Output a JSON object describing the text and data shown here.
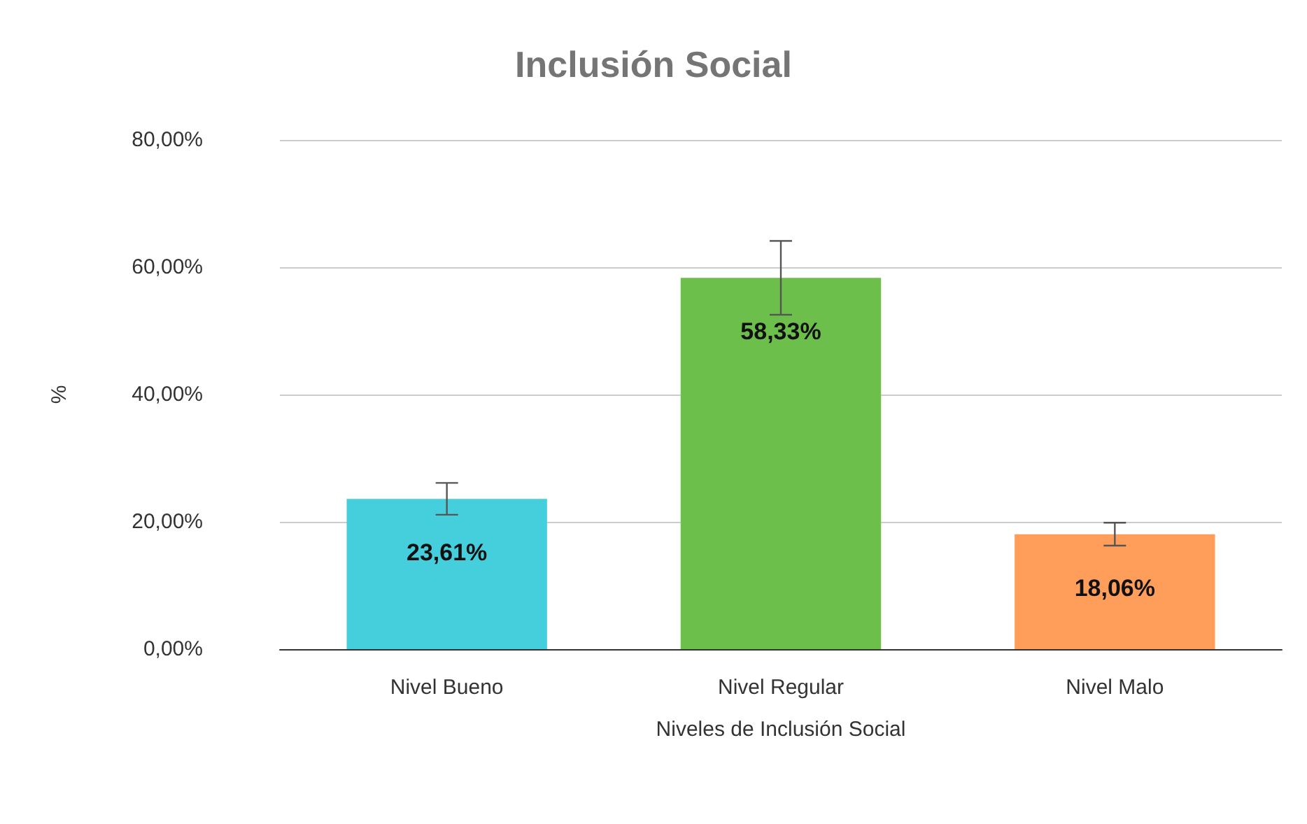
{
  "chart_data": {
    "type": "bar",
    "title": "Inclusión Social",
    "xlabel": "Niveles de Inclusión Social",
    "ylabel": "%",
    "categories": [
      "Nivel Bueno",
      "Nivel Regular",
      "Nivel Malo"
    ],
    "values": [
      23.61,
      58.33,
      18.06
    ],
    "colors": [
      "#45cfdc",
      "#6cbf4a",
      "#ff9e5a"
    ],
    "errors": [
      2.5,
      5.8,
      1.8
    ],
    "value_labels": [
      "23,61%",
      "58,33%",
      "18,06%"
    ],
    "ylim": [
      0,
      80
    ],
    "yticks": [
      {
        "value": 0,
        "label": "0,00%"
      },
      {
        "value": 20,
        "label": "20,00%"
      },
      {
        "value": 40,
        "label": "40,00%"
      },
      {
        "value": 60,
        "label": "60,00%"
      },
      {
        "value": 80,
        "label": "80,00%"
      }
    ],
    "grid": "y"
  }
}
